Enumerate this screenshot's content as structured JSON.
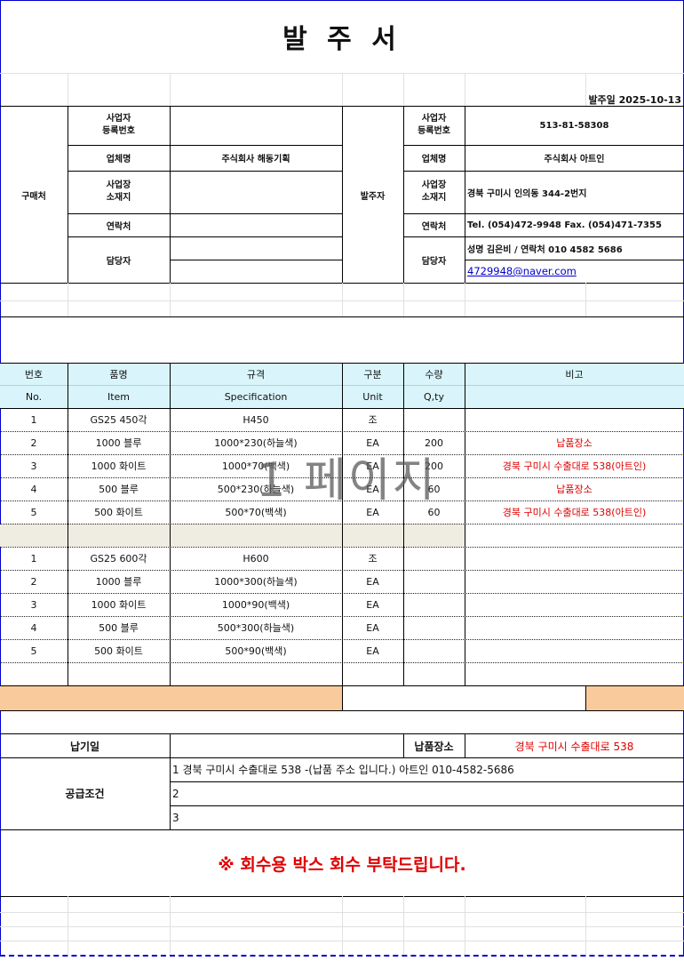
{
  "title": "발 주 서",
  "order_date": "발주일 2025-10-13",
  "watermark": "1 페이지",
  "buyer": {
    "section_label": "구매처",
    "reg_label": "사업자\n등록번호",
    "reg_value": "",
    "company_label": "업체명",
    "company_value": "주식회사 해동기획",
    "address_label": "사업장\n소재지",
    "address_value": "",
    "contact_label": "연락처",
    "contact_value": "",
    "manager_label": "담당자",
    "manager_value": ""
  },
  "supplier": {
    "section_label": "발주자",
    "reg_label": "사업자\n등록번호",
    "reg_value": "513-81-58308",
    "company_label": "업체명",
    "company_value": "주식회사 아트인",
    "address_label": "사업장\n소재지",
    "address_value": "경북 구미시 인의동 344-2번지",
    "contact_label": "연락처",
    "contact_value": "Tel. (054)472-9948 Fax. (054)471-7355",
    "manager_label": "담당자",
    "manager_value": "성명 김은비  / 연락처 010 4582 5686",
    "email": "4729948@naver.com"
  },
  "table": {
    "headers_ko": [
      "번호",
      "품명",
      "규격",
      "구분",
      "수량",
      "비고"
    ],
    "headers_en": [
      "No.",
      "Item",
      "Specification",
      "Unit",
      "Q,ty",
      ""
    ],
    "group1": [
      {
        "no": "1",
        "item": "GS25 450각",
        "spec": "H450",
        "unit": "조",
        "qty": "",
        "note": ""
      },
      {
        "no": "2",
        "item": "1000 블루",
        "spec": "1000*230(하늘색)",
        "unit": "EA",
        "qty": "200",
        "note": "납품장소"
      },
      {
        "no": "3",
        "item": "1000 화이트",
        "spec": "1000*70(백색)",
        "unit": "EA",
        "qty": "200",
        "note": "경북 구미시 수출대로 538(아트인)"
      },
      {
        "no": "4",
        "item": "500 블루",
        "spec": "500*230(하늘색)",
        "unit": "EA",
        "qty": "60",
        "note": "납품장소"
      },
      {
        "no": "5",
        "item": "500 화이트",
        "spec": "500*70(백색)",
        "unit": "EA",
        "qty": "60",
        "note": "경북 구미시 수출대로 538(아트인)"
      }
    ],
    "group2": [
      {
        "no": "1",
        "item": "GS25 600각",
        "spec": "H600",
        "unit": "조",
        "qty": "",
        "note": ""
      },
      {
        "no": "2",
        "item": "1000 블루",
        "spec": "1000*300(하늘색)",
        "unit": "EA",
        "qty": "",
        "note": ""
      },
      {
        "no": "3",
        "item": "1000 화이트",
        "spec": "1000*90(백색)",
        "unit": "EA",
        "qty": "",
        "note": ""
      },
      {
        "no": "4",
        "item": "500 블루",
        "spec": "500*300(하늘색)",
        "unit": "EA",
        "qty": "",
        "note": ""
      },
      {
        "no": "5",
        "item": "500 화이트",
        "spec": "500*90(백색)",
        "unit": "EA",
        "qty": "",
        "note": ""
      }
    ]
  },
  "delivery": {
    "date_label": "납기일",
    "date_value": "",
    "place_label": "납품장소",
    "place_value": "경북 구미시 수출대로 538"
  },
  "terms": {
    "label": "공급조건",
    "lines": [
      "1 경북 구미시 수출대로 538 -(납품 주소 입니다.)   아트인 010-4582-5686",
      "2",
      "3"
    ]
  },
  "notice": "※ 회수용 박스 회수 부탁드립니다.",
  "colors": {
    "header_bg": "#d9f5fb",
    "total_bg": "#f9cb9c",
    "separator_bg": "#efece2",
    "accent_red": "#e00000",
    "frame_blue": "#0000cc"
  }
}
